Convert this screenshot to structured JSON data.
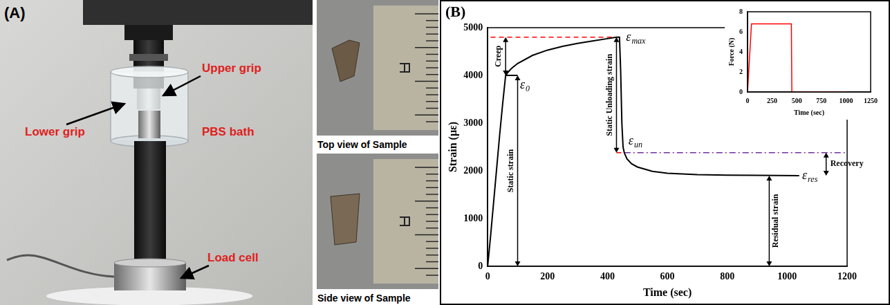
{
  "panel_a": {
    "letter": "(A)",
    "labels": {
      "upper_grip": "Upper grip",
      "lower_grip": "Lower grip",
      "bath": "PBS bath",
      "load_cell": "Load cell"
    },
    "captions": [
      "Top view of Sample",
      "Side view of Sample"
    ]
  },
  "panel_b": {
    "letter": "(B)"
  },
  "chart_data": [
    {
      "type": "line",
      "x_label": "Time (sec)",
      "y_label": "Strain (με)",
      "xlim": [
        0,
        1200
      ],
      "xticks": [
        0,
        200,
        400,
        600,
        800,
        1000,
        1200
      ],
      "ylim": [
        0,
        5000
      ],
      "yticks": [
        0,
        1000,
        2000,
        3000,
        4000,
        5000
      ],
      "grid": false,
      "series": [
        {
          "color": "#000000",
          "line_style": "solid",
          "x": [
            0,
            10,
            20,
            30,
            40,
            50,
            60,
            70,
            80,
            100,
            150,
            200,
            250,
            300,
            350,
            400,
            430,
            440,
            444,
            448,
            452,
            456,
            465,
            480,
            500,
            550,
            600,
            700,
            800,
            900,
            1040
          ],
          "values": [
            0,
            650,
            1350,
            2050,
            2750,
            3400,
            4000,
            4080,
            4150,
            4250,
            4420,
            4530,
            4610,
            4670,
            4720,
            4770,
            4800,
            4800,
            4100,
            3000,
            2500,
            2380,
            2250,
            2150,
            2080,
            1990,
            1950,
            1920,
            1910,
            1905,
            1900
          ]
        },
        {
          "color": "#ff0000",
          "line_style": "dashed",
          "x": [
            10,
            430
          ],
          "values": [
            4800,
            4800
          ]
        },
        {
          "color": "#000000",
          "line_style": "solid",
          "x": [
            60,
            100
          ],
          "values": [
            4000,
            4000
          ]
        },
        {
          "color": "#ff0000",
          "line_style": "dashed",
          "x": [
            430,
            456
          ],
          "values": [
            2380,
            2380
          ]
        },
        {
          "color": "#7030a0",
          "line_style": "dashdot",
          "x": [
            456,
            1200
          ],
          "values": [
            2380,
            2380
          ]
        }
      ],
      "arrows": [
        {
          "text": "Creep",
          "x": 60,
          "values": [
            4000,
            4800
          ]
        },
        {
          "text": "Static strain",
          "x": 100,
          "values": [
            0,
            4000
          ]
        },
        {
          "text": "Static Unloading strain",
          "x": 430,
          "values": [
            4800,
            2380
          ]
        },
        {
          "text": "Recovery",
          "x": 1130,
          "values": [
            2380,
            1900
          ]
        },
        {
          "text": "Residual strain",
          "x": 940,
          "values": [
            0,
            1900
          ]
        }
      ],
      "annotations": [
        {
          "text": "ε",
          "sub": "max",
          "x": 462,
          "y": 4800
        },
        {
          "text": "ε",
          "sub": "0",
          "x": 108,
          "y": 3800
        },
        {
          "text": "ε",
          "sub": "un",
          "x": 470,
          "y": 2620
        },
        {
          "text": "ε",
          "sub": "res",
          "x": 1050,
          "y": 1900
        }
      ]
    },
    {
      "type": "line",
      "x_label": "Time (sec)",
      "y_label": "Force (N)",
      "xlim": [
        0,
        1250
      ],
      "xticks": [
        0,
        250,
        500,
        750,
        1000,
        1250
      ],
      "ylim": [
        0,
        8
      ],
      "yticks": [
        0,
        2,
        4,
        6,
        8
      ],
      "grid": false,
      "series": [
        {
          "color": "#ff0000",
          "line_style": "solid",
          "x": [
            0,
            40,
            445,
            450,
            1000
          ],
          "values": [
            0,
            6.8,
            6.8,
            0,
            0
          ]
        }
      ]
    }
  ]
}
